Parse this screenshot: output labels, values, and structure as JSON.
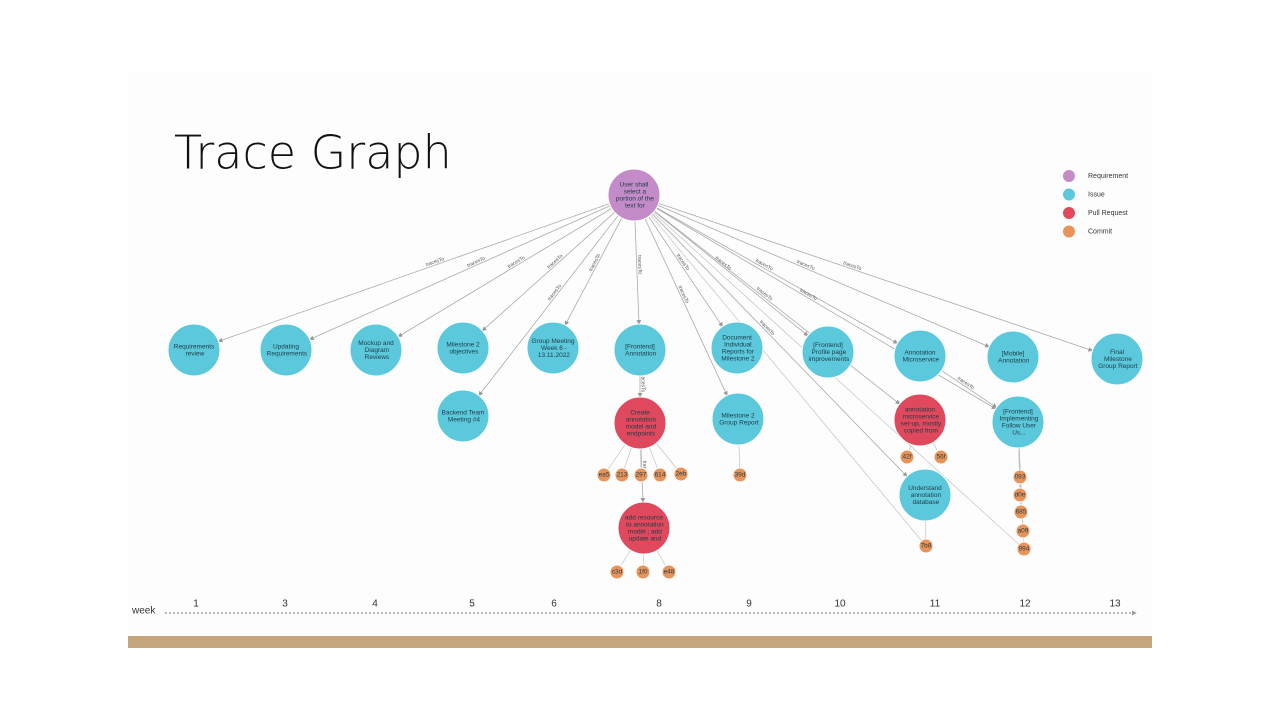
{
  "header": {
    "title": "Trace Graph"
  },
  "legend": [
    {
      "label": "Requirement",
      "color": "#c38bc8"
    },
    {
      "label": "Issue",
      "color": "#5bc8dc"
    },
    {
      "label": "Pull Request",
      "color": "#e0485e"
    },
    {
      "label": "Commit",
      "color": "#e8935a"
    }
  ],
  "nodes": [
    {
      "label": "User shall select a portion of the text for annota",
      "kind": 0
    },
    {
      "label": "Requirements review",
      "kind": 1
    },
    {
      "label": "Updating Requirements",
      "kind": 1
    },
    {
      "label": "Mockup and Diagram Reviews",
      "kind": 1
    },
    {
      "label": "Milestone 2 objectives",
      "kind": 1
    },
    {
      "label": "Group Meeting Week 6 - 13.11.2022",
      "kind": 1
    },
    {
      "label": "[Frontend] Annotation",
      "kind": 1
    },
    {
      "label": "Document Individual Reports for Milestone 2",
      "kind": 1
    },
    {
      "label": "[Frontend] Profile page improvements",
      "kind": 1
    },
    {
      "label": "Annotation Microservice",
      "kind": 1
    },
    {
      "label": "[Mobile] Annotation",
      "kind": 1
    },
    {
      "label": "Final Milestone Group Report",
      "kind": 1
    },
    {
      "label": "Backend Team Meeting #4",
      "kind": 1
    },
    {
      "label": "Milestone 2 Group Report",
      "kind": 1
    },
    {
      "label": "[Frontend] Implementing Follow User Us...",
      "kind": 1
    },
    {
      "label": "Understand annotation database",
      "kind": 1
    },
    {
      "label": "Create annotation model and endpoints",
      "kind": 2
    },
    {
      "label": "annotation microservice set-up, mostly copied from",
      "kind": 2
    },
    {
      "label": "add resource to annotation model ; add update and",
      "kind": 2
    },
    {
      "label": "ea5",
      "kind": 3
    },
    {
      "label": "213",
      "kind": 3
    },
    {
      "label": "297",
      "kind": 3
    },
    {
      "label": "614",
      "kind": 3
    },
    {
      "label": "2eb",
      "kind": 3
    },
    {
      "label": "39d",
      "kind": 3
    },
    {
      "label": "42f",
      "kind": 3
    },
    {
      "label": "56f",
      "kind": 3
    },
    {
      "label": "093",
      "kind": 3
    },
    {
      "label": "d0e",
      "kind": 3
    },
    {
      "label": "685",
      "kind": 3
    },
    {
      "label": "a09",
      "kind": 3
    },
    {
      "label": "994",
      "kind": 3
    },
    {
      "label": "7b8",
      "kind": 3
    },
    {
      "label": "c3d",
      "kind": 3
    },
    {
      "label": "1f0",
      "kind": 3
    },
    {
      "label": "e48",
      "kind": 3
    }
  ],
  "edges": [
    {
      "from": 0,
      "to": 1,
      "label": "tracesTo"
    },
    {
      "from": 0,
      "to": 2,
      "label": "tracesTo"
    },
    {
      "from": 0,
      "to": 3,
      "label": "tracesTo"
    },
    {
      "from": 0,
      "to": 4,
      "label": "tracesTo"
    },
    {
      "from": 0,
      "to": 5,
      "label": "tracesTo"
    },
    {
      "from": 0,
      "to": 6,
      "label": "tracesTo"
    },
    {
      "from": 0,
      "to": 7,
      "label": "tracesTo"
    },
    {
      "from": 0,
      "to": 8,
      "label": "tracesTo"
    },
    {
      "from": 0,
      "to": 9,
      "label": "tracesTo"
    },
    {
      "from": 0,
      "to": 10,
      "label": "tracesTo"
    },
    {
      "from": 0,
      "to": 11,
      "label": "tracesTo"
    },
    {
      "from": 0,
      "to": 12,
      "label": "tracesTo"
    },
    {
      "from": 0,
      "to": 13,
      "label": "tracesTo"
    },
    {
      "from": 0,
      "to": 15,
      "label": "tracesTo"
    },
    {
      "from": 0,
      "to": 17,
      "label": "tracesTo"
    },
    {
      "from": 0,
      "to": 14,
      "label": "tracesTo"
    },
    {
      "from": 6,
      "to": 16,
      "label": "tracesTo"
    },
    {
      "from": 16,
      "to": 18,
      "label": "tracesTo"
    },
    {
      "from": 9,
      "to": 14,
      "label": "tracesTo"
    }
  ],
  "axis": {
    "label": "week",
    "ticks": [
      "1",
      "3",
      "4",
      "5",
      "6",
      "8",
      "9",
      "10",
      "11",
      "12",
      "13"
    ]
  }
}
